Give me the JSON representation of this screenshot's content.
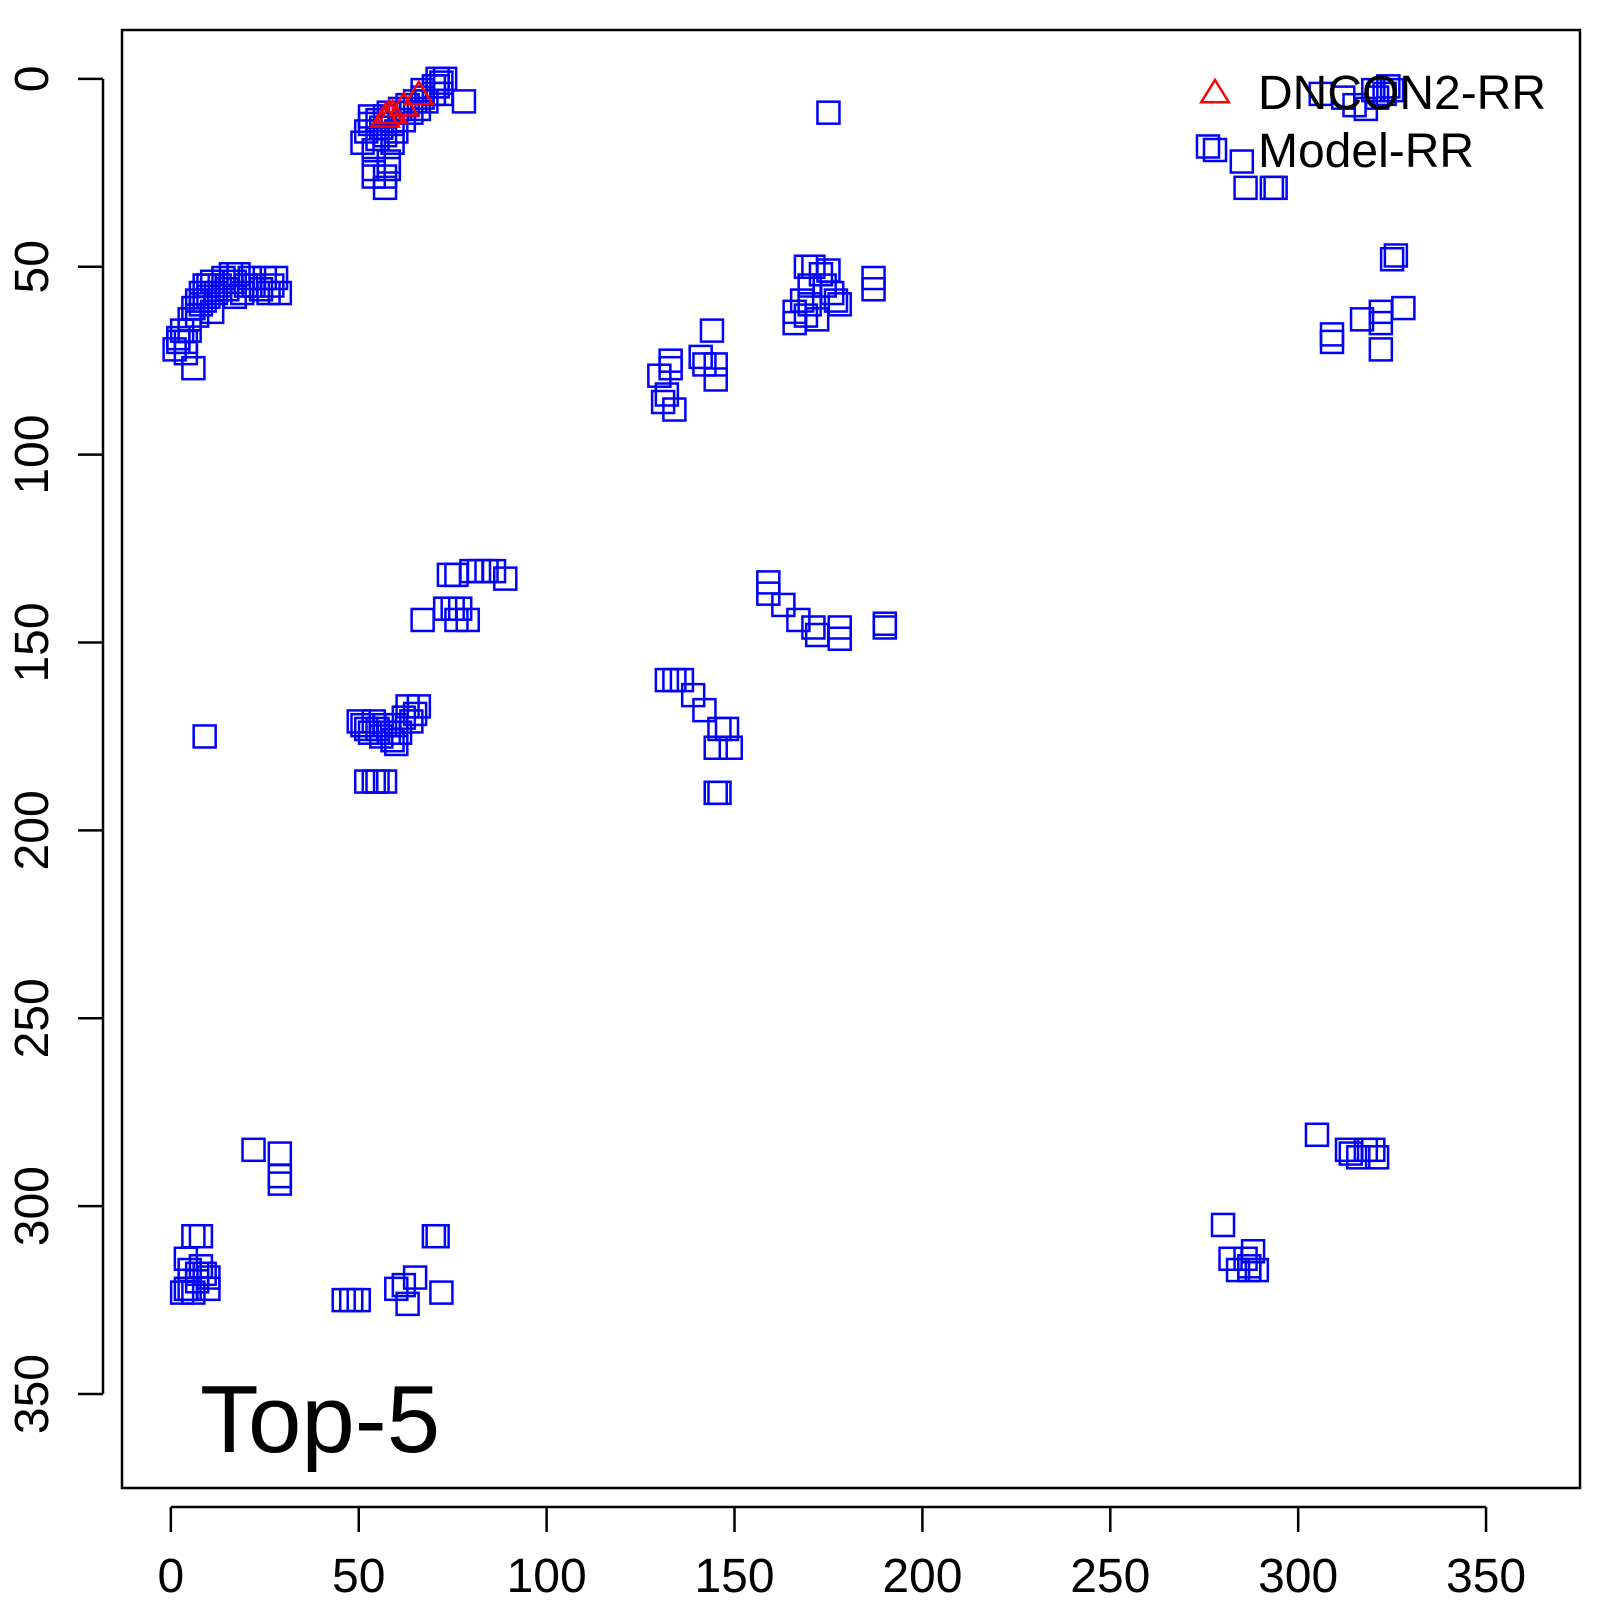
{
  "chart_data": {
    "type": "scatter",
    "title": "",
    "xlabel": "",
    "ylabel": "",
    "xlim": [
      -13,
      375
    ],
    "ylim": [
      -13,
      375
    ],
    "y_reversed": true,
    "x_ticks": [
      0,
      50,
      100,
      150,
      200,
      250,
      300,
      350
    ],
    "y_ticks": [
      0,
      50,
      100,
      150,
      200,
      250,
      300,
      350
    ],
    "x_tick_labels": [
      "0",
      "50",
      "100",
      "150",
      "200",
      "250",
      "300",
      "350"
    ],
    "y_tick_labels": [
      "0",
      "50",
      "100",
      "150",
      "200",
      "250",
      "300",
      "350"
    ],
    "annotation": "Top-5",
    "legend": {
      "position": "top-right",
      "entries": [
        {
          "label": "DNCON2-RR",
          "marker": "triangle",
          "color": "#ff0000"
        },
        {
          "label": "Model-RR",
          "marker": "square",
          "color": "#0000ff"
        }
      ]
    },
    "series": [
      {
        "name": "Model-RR",
        "marker": "square",
        "color": "#0000ff",
        "points": [
          [
            54,
            24
          ],
          [
            54,
            26
          ],
          [
            57,
            26
          ],
          [
            57,
            29
          ],
          [
            58,
            22
          ],
          [
            58,
            24
          ],
          [
            51,
            17
          ],
          [
            52,
            14
          ],
          [
            53,
            12
          ],
          [
            53,
            10
          ],
          [
            54,
            19
          ],
          [
            55,
            11
          ],
          [
            55,
            16
          ],
          [
            56,
            13
          ],
          [
            57,
            10
          ],
          [
            57,
            15
          ],
          [
            58,
            9
          ],
          [
            59,
            12
          ],
          [
            59,
            17
          ],
          [
            60,
            14
          ],
          [
            61,
            8
          ],
          [
            62,
            11
          ],
          [
            63,
            7
          ],
          [
            64,
            9
          ],
          [
            65,
            6
          ],
          [
            66,
            8
          ],
          [
            67,
            5
          ],
          [
            67,
            3
          ],
          [
            68,
            6
          ],
          [
            70,
            4
          ],
          [
            70,
            2
          ],
          [
            71,
            0
          ],
          [
            71,
            2
          ],
          [
            72,
            4
          ],
          [
            72,
            1
          ],
          [
            73,
            0
          ],
          [
            78,
            6
          ],
          [
            1,
            72
          ],
          [
            2,
            69
          ],
          [
            2,
            70
          ],
          [
            3,
            67
          ],
          [
            4,
            70
          ],
          [
            4,
            73
          ],
          [
            5,
            64
          ],
          [
            5,
            67
          ],
          [
            6,
            61
          ],
          [
            6,
            77
          ],
          [
            7,
            59
          ],
          [
            7,
            63
          ],
          [
            8,
            57
          ],
          [
            8,
            60
          ],
          [
            9,
            55
          ],
          [
            9,
            59
          ],
          [
            10,
            55
          ],
          [
            10,
            58
          ],
          [
            11,
            54
          ],
          [
            11,
            62
          ],
          [
            12,
            57
          ],
          [
            13,
            55
          ],
          [
            14,
            53
          ],
          [
            15,
            56
          ],
          [
            16,
            52
          ],
          [
            17,
            54
          ],
          [
            17,
            58
          ],
          [
            18,
            52
          ],
          [
            19,
            57
          ],
          [
            20,
            55
          ],
          [
            21,
            53
          ],
          [
            22,
            55
          ],
          [
            24,
            56
          ],
          [
            25,
            53
          ],
          [
            26,
            57
          ],
          [
            27,
            55
          ],
          [
            28,
            53
          ],
          [
            29,
            57
          ],
          [
            9,
            175
          ],
          [
            50,
            171
          ],
          [
            51,
            172
          ],
          [
            52,
            173
          ],
          [
            53,
            174
          ],
          [
            54,
            171
          ],
          [
            55,
            173
          ],
          [
            56,
            175
          ],
          [
            57,
            172
          ],
          [
            58,
            174
          ],
          [
            59,
            176
          ],
          [
            60,
            172
          ],
          [
            61,
            174
          ],
          [
            62,
            170
          ],
          [
            63,
            167
          ],
          [
            64,
            171
          ],
          [
            65,
            169
          ],
          [
            66,
            167
          ],
          [
            60,
            177
          ],
          [
            52,
            187
          ],
          [
            54,
            187
          ],
          [
            55,
            187
          ],
          [
            57,
            187
          ],
          [
            67,
            144
          ],
          [
            73,
            141
          ],
          [
            75,
            141
          ],
          [
            76,
            144
          ],
          [
            77,
            141
          ],
          [
            79,
            144
          ],
          [
            74,
            132
          ],
          [
            76,
            132
          ],
          [
            80,
            131
          ],
          [
            82,
            131
          ],
          [
            84,
            131
          ],
          [
            86,
            131
          ],
          [
            89,
            133
          ],
          [
            130,
            79
          ],
          [
            131,
            86
          ],
          [
            132,
            84
          ],
          [
            133,
            75
          ],
          [
            133,
            77
          ],
          [
            134,
            88
          ],
          [
            141,
            74
          ],
          [
            142,
            76
          ],
          [
            144,
            67
          ],
          [
            145,
            76
          ],
          [
            145,
            80
          ],
          [
            166,
            62
          ],
          [
            166,
            65
          ],
          [
            168,
            59
          ],
          [
            169,
            50
          ],
          [
            169,
            63
          ],
          [
            170,
            55
          ],
          [
            170,
            60
          ],
          [
            171,
            50
          ],
          [
            172,
            64
          ],
          [
            173,
            52
          ],
          [
            174,
            55
          ],
          [
            175,
            51
          ],
          [
            176,
            57
          ],
          [
            177,
            59
          ],
          [
            178,
            60
          ],
          [
            187,
            53
          ],
          [
            187,
            56
          ],
          [
            175,
            9
          ],
          [
            159,
            134
          ],
          [
            159,
            137
          ],
          [
            163,
            140
          ],
          [
            167,
            144
          ],
          [
            171,
            146
          ],
          [
            172,
            148
          ],
          [
            178,
            146
          ],
          [
            178,
            149
          ],
          [
            190,
            145
          ],
          [
            190,
            146
          ],
          [
            132,
            160
          ],
          [
            134,
            160
          ],
          [
            136,
            160
          ],
          [
            139,
            164
          ],
          [
            142,
            168
          ],
          [
            145,
            178
          ],
          [
            146,
            173
          ],
          [
            148,
            173
          ],
          [
            149,
            178
          ],
          [
            145,
            190
          ],
          [
            146,
            190
          ],
          [
            6,
            308
          ],
          [
            7,
            318
          ],
          [
            8,
            308
          ],
          [
            4,
            314
          ],
          [
            5,
            317
          ],
          [
            4,
            322
          ],
          [
            5,
            322
          ],
          [
            6,
            323
          ],
          [
            7,
            320
          ],
          [
            8,
            316
          ],
          [
            9,
            318
          ],
          [
            10,
            319
          ],
          [
            10,
            322
          ],
          [
            3,
            323
          ],
          [
            22,
            285
          ],
          [
            29,
            286
          ],
          [
            29,
            292
          ],
          [
            29,
            294
          ],
          [
            46,
            325
          ],
          [
            48,
            325
          ],
          [
            50,
            325
          ],
          [
            60,
            322
          ],
          [
            62,
            321
          ],
          [
            63,
            326
          ],
          [
            65,
            319
          ],
          [
            70,
            308
          ],
          [
            71,
            308
          ],
          [
            72,
            323
          ],
          [
            276,
            18
          ],
          [
            285,
            22
          ],
          [
            286,
            29
          ],
          [
            293,
            29
          ],
          [
            294,
            29
          ],
          [
            306,
            4
          ],
          [
            312,
            5
          ],
          [
            315,
            7
          ],
          [
            318,
            8
          ],
          [
            320,
            3
          ],
          [
            321,
            5
          ],
          [
            323,
            4
          ],
          [
            324,
            2
          ],
          [
            325,
            3
          ],
          [
            326,
            47
          ],
          [
            325,
            48
          ],
          [
            328,
            61
          ],
          [
            322,
            62
          ],
          [
            322,
            65
          ],
          [
            317,
            64
          ],
          [
            322,
            72
          ],
          [
            309,
            68
          ],
          [
            309,
            70
          ],
          [
            305,
            281
          ],
          [
            313,
            285
          ],
          [
            314,
            286
          ],
          [
            316,
            287
          ],
          [
            318,
            285
          ],
          [
            320,
            285
          ],
          [
            321,
            287
          ],
          [
            280,
            305
          ],
          [
            282,
            314
          ],
          [
            284,
            317
          ],
          [
            286,
            314
          ],
          [
            287,
            316
          ],
          [
            287,
            317
          ],
          [
            288,
            312
          ],
          [
            289,
            317
          ]
        ]
      },
      {
        "name": "DNCON2-RR",
        "marker": "triangle",
        "color": "#ff0000",
        "points": [
          [
            57,
            10
          ],
          [
            58,
            9
          ],
          [
            59,
            9
          ],
          [
            62,
            7
          ],
          [
            66,
            4
          ]
        ]
      }
    ]
  }
}
